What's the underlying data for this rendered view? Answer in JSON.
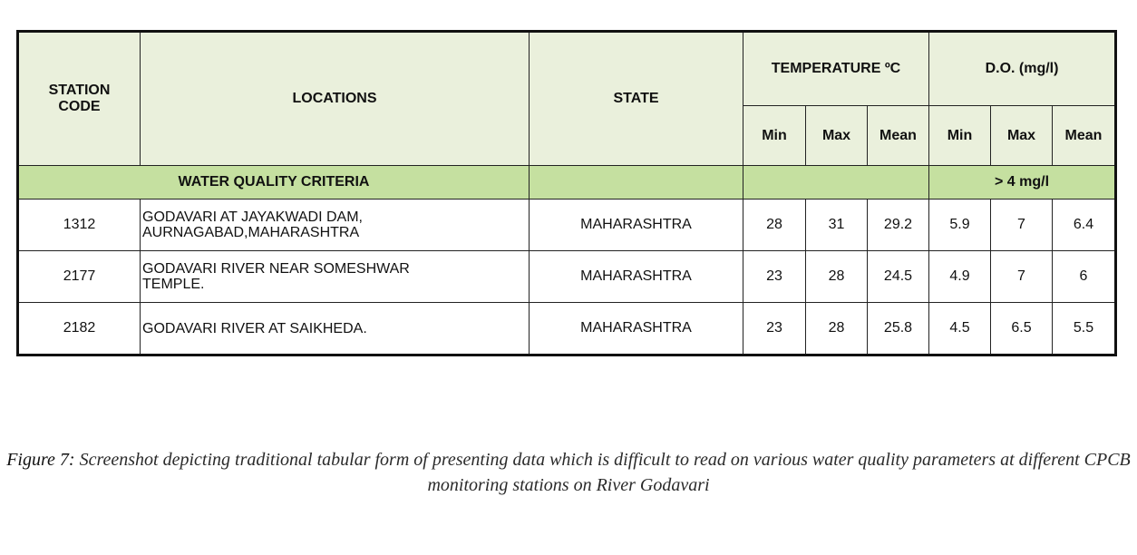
{
  "table": {
    "headers": {
      "station_code": "STATION CODE",
      "locations": "LOCATIONS",
      "state": "STATE",
      "temperature": "TEMPERATURE ºC",
      "do": "D.O. (mg/l)",
      "sub": [
        "Min",
        "Max",
        "Mean",
        "Min",
        "Max",
        "Mean"
      ]
    },
    "criteria": {
      "label": "WATER QUALITY CRITERIA",
      "do_value": "> 4 mg/l"
    },
    "rows": [
      {
        "code": "1312",
        "location_line1": "GODAVARI AT JAYAKWADI DAM,",
        "location_line2": "AURNAGABAD,MAHARASHTRA",
        "state": "MAHARASHTRA",
        "values": [
          "28",
          "31",
          "29.2",
          "5.9",
          "7",
          "6.4"
        ]
      },
      {
        "code": "2177",
        "location_line1": "GODAVARI RIVER NEAR SOMESHWAR",
        "location_line2": "TEMPLE.",
        "state": "MAHARASHTRA",
        "values": [
          "23",
          "28",
          "24.5",
          "4.9",
          "7",
          "6"
        ]
      },
      {
        "code": "2182",
        "location_line1": "GODAVARI RIVER AT SAIKHEDA.",
        "location_line2": "",
        "state": "MAHARASHTRA",
        "values": [
          "23",
          "28",
          "25.8",
          "4.5",
          "6.5",
          "5.5"
        ]
      }
    ]
  },
  "caption": {
    "label": "Figure 7:",
    "text": " Screenshot depicting traditional tabular form of presenting data which is difficult to read on various water quality parameters at different CPCB monitoring stations on River Godavari"
  }
}
